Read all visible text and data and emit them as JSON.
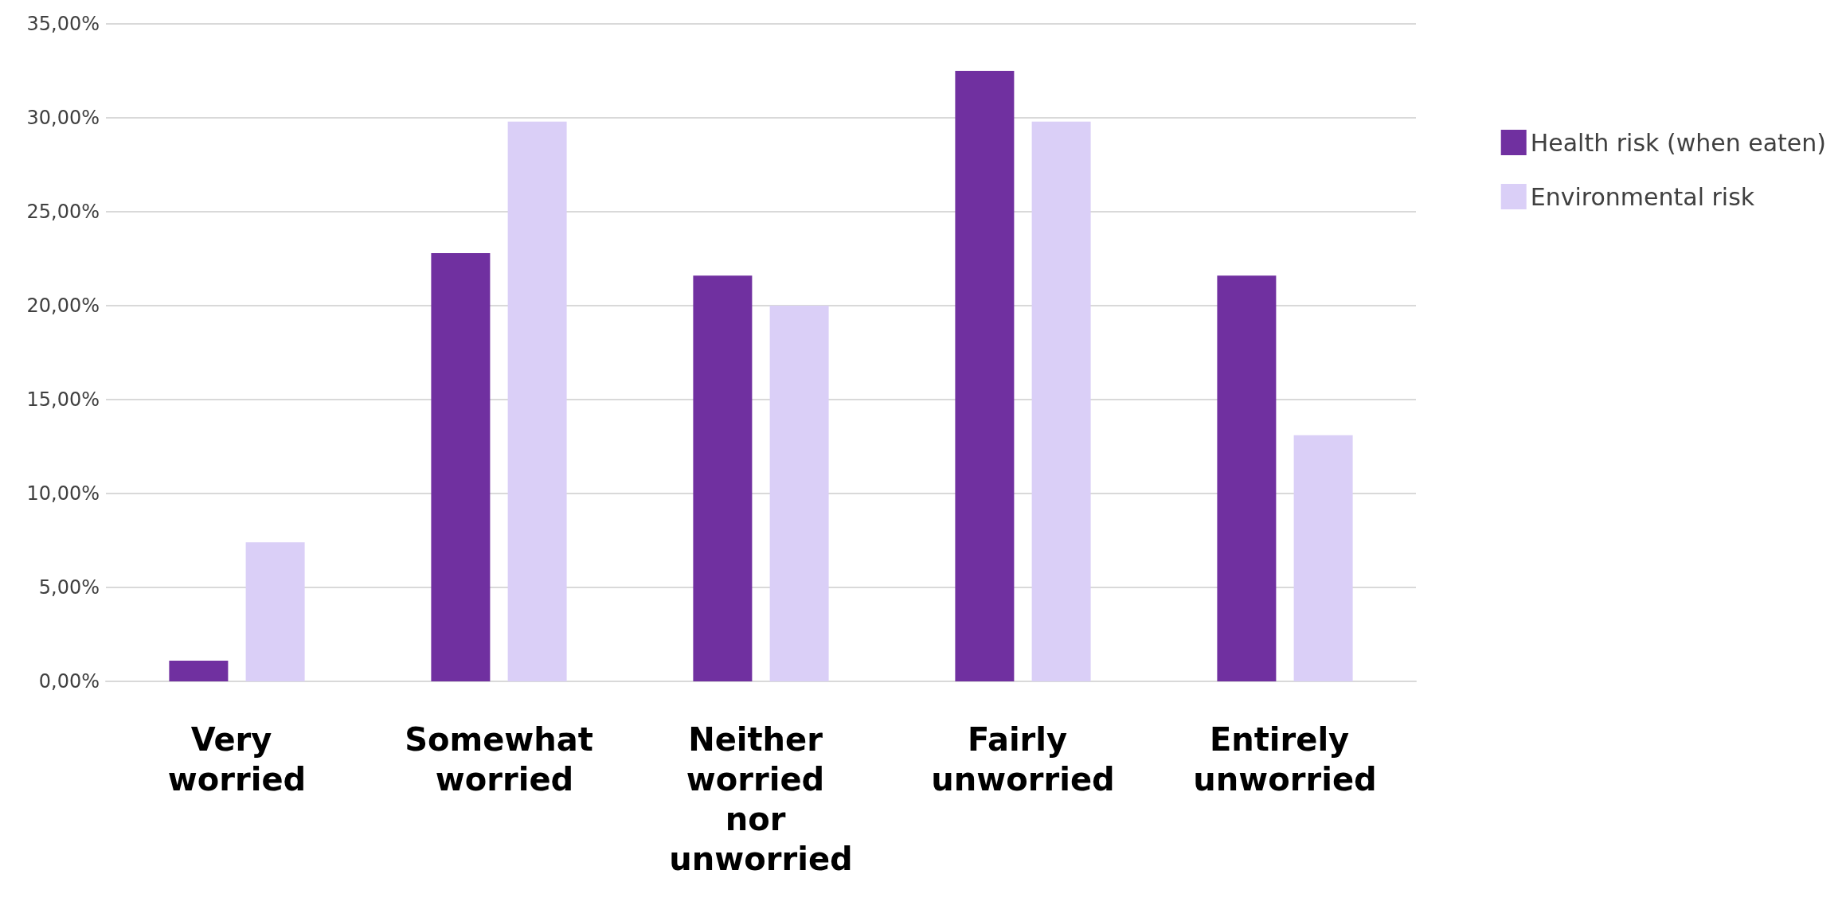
{
  "chart_data": {
    "type": "bar",
    "categories": [
      "Very worried",
      "Somewhat worried",
      "Neither worried nor unworried",
      "Fairly unworried",
      "Entirely unworried"
    ],
    "series": [
      {
        "name": "Health risk (when eaten)",
        "color": "#7030a0",
        "values": [
          1.1,
          22.8,
          21.6,
          32.5,
          21.6
        ]
      },
      {
        "name": "Environmental risk",
        "color": "#dacff7",
        "values": [
          7.4,
          29.8,
          20.0,
          29.8,
          13.1
        ]
      }
    ],
    "ylim": [
      0,
      35
    ],
    "yticks": [
      {
        "value": 0,
        "label": "0,00%"
      },
      {
        "value": 5,
        "label": "5,00%"
      },
      {
        "value": 10,
        "label": "10,00%"
      },
      {
        "value": 15,
        "label": "15,00%"
      },
      {
        "value": 20,
        "label": "20,00%"
      },
      {
        "value": 25,
        "label": "25,00%"
      },
      {
        "value": 30,
        "label": "30,00%"
      },
      {
        "value": 35,
        "label": "35,00%"
      }
    ],
    "grid": "y",
    "legend": "right"
  }
}
